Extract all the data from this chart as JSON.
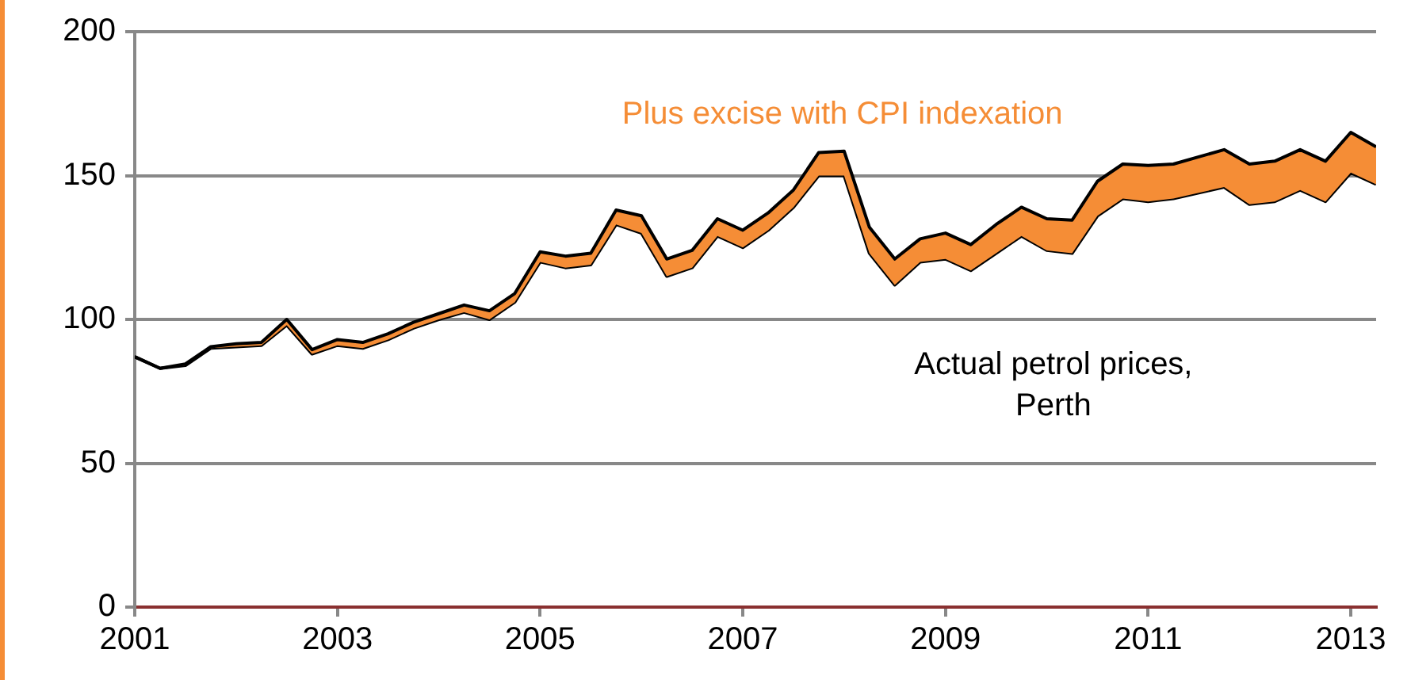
{
  "chart_data": {
    "type": "line",
    "x": [
      2001,
      2001.25,
      2001.5,
      2001.75,
      2002,
      2002.25,
      2002.5,
      2002.75,
      2003,
      2003.25,
      2003.5,
      2003.75,
      2004,
      2004.25,
      2004.5,
      2004.75,
      2005,
      2005.25,
      2005.5,
      2005.75,
      2006,
      2006.25,
      2006.5,
      2006.75,
      2007,
      2007.25,
      2007.5,
      2007.75,
      2008,
      2008.25,
      2008.5,
      2008.75,
      2009,
      2009.25,
      2009.5,
      2009.75,
      2010,
      2010.25,
      2010.5,
      2010.75,
      2011,
      2011.25,
      2011.5,
      2011.75,
      2012,
      2012.25,
      2012.5,
      2012.75,
      2013,
      2013.25
    ],
    "series": [
      {
        "name": "Actual petrol prices, Perth",
        "color": "#000000",
        "values": [
          87,
          83,
          84,
          90,
          90.5,
          91,
          98,
          88,
          91,
          90,
          93,
          97,
          100,
          102.5,
          100,
          106,
          120,
          118,
          119,
          133,
          130,
          115,
          118,
          129,
          125,
          131,
          139,
          150,
          150,
          123,
          112,
          120,
          121,
          117,
          123,
          129,
          124,
          123,
          136,
          142,
          141,
          142,
          144,
          146,
          140,
          141,
          145,
          141,
          151,
          147
        ]
      },
      {
        "name": "Plus excise with CPI indexation",
        "type": "area",
        "color": "#f58d36",
        "values": [
          87,
          83,
          84.5,
          90.5,
          91.5,
          92,
          100,
          89.5,
          93,
          92,
          95,
          99,
          102,
          105,
          103,
          109,
          123.5,
          122,
          123,
          138,
          136,
          121,
          124,
          135,
          131,
          137,
          145,
          158,
          158.5,
          132,
          121,
          128,
          130,
          126,
          133,
          139,
          135,
          134.5,
          148,
          154,
          153.5,
          154,
          156.5,
          159,
          154,
          155,
          159,
          155,
          165,
          160
        ]
      }
    ],
    "xlim": [
      2001,
      2013.25
    ],
    "xticks": [
      2001,
      2003,
      2005,
      2007,
      2009,
      2011,
      2013
    ],
    "ylim": [
      0,
      200
    ],
    "yticks": [
      0,
      50,
      100,
      150,
      200
    ],
    "grid": "y",
    "legend": false
  }
}
